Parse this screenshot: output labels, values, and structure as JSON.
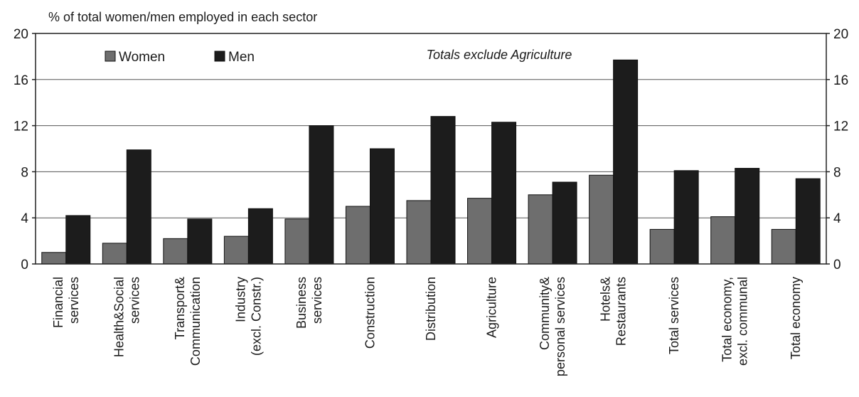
{
  "chart_data": {
    "type": "bar",
    "ylabel": "% of total women/men employed in each sector",
    "annotation": "Totals exclude Agriculture",
    "ylim": [
      0,
      20
    ],
    "yticks": [
      0,
      4,
      8,
      12,
      16,
      20
    ],
    "grid": true,
    "legend_position": "top-left",
    "categories": [
      [
        "Financial",
        "services"
      ],
      [
        "Health&Social",
        "services"
      ],
      [
        "Transport&",
        "Communication"
      ],
      [
        "Industry",
        "(excl. Constr.)"
      ],
      [
        "Business",
        "services"
      ],
      [
        "Construction"
      ],
      [
        "Distribution"
      ],
      [
        "Agriculture"
      ],
      [
        "Community&",
        "personal services"
      ],
      [
        "Hotels&",
        "Restaurants"
      ],
      [
        "Total services"
      ],
      [
        "Total economy,",
        "excl. communal"
      ],
      [
        "Total economy"
      ]
    ],
    "series": [
      {
        "name": "Women",
        "color": "#6e6e6e",
        "values": [
          1.0,
          1.8,
          2.2,
          2.4,
          3.9,
          5.0,
          5.5,
          5.7,
          6.0,
          7.7,
          3.0,
          4.1,
          3.0
        ]
      },
      {
        "name": "Men",
        "color": "#1c1c1c",
        "values": [
          4.2,
          9.9,
          3.9,
          4.8,
          12.0,
          10.0,
          12.8,
          12.3,
          7.1,
          17.7,
          8.1,
          8.3,
          7.4
        ]
      }
    ]
  }
}
